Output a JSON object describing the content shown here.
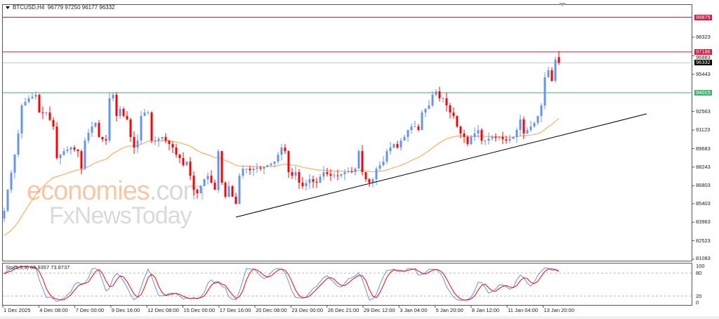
{
  "header": {
    "symbol": "BTCUSD,H4",
    "open": "96779",
    "high": "97250",
    "low": "96177",
    "close": "96332"
  },
  "stochastic": {
    "label": "Sto(5,3,3) 65.9357 73.8737",
    "levels": [
      "100",
      "80",
      "20",
      "0"
    ]
  },
  "watermark": {
    "line1": "economies",
    "line1_suffix": ".com",
    "line2": "FxNewsToday"
  },
  "price_axis": [
    "98323",
    "96883",
    "95443",
    "92563",
    "91123",
    "89683",
    "88243",
    "86803",
    "85403",
    "83963",
    "82523",
    "81083"
  ],
  "level_lines": [
    {
      "price": "99875",
      "color": "#e0143c"
    },
    {
      "price": "97186",
      "color": "#e0143c"
    },
    {
      "price": "96332",
      "color": "#000000"
    },
    {
      "price": "94015",
      "color": "#3cb371"
    }
  ],
  "time_axis": [
    "1 Dec 2025",
    "4 Dec 08:00",
    "7 Dec 00:00",
    "9 Dec 16:00",
    "12 Dec 08:00",
    "15 Dec 00:00",
    "17 Dec 16:00",
    "20 Dec 08:00",
    "23 Dec 00:00",
    "26 Dec 21:00",
    "29 Dec 12:00",
    "3 Jan 04:00",
    "5 Jan 20:00",
    "8 Jan 12:00",
    "11 Jan 04:00",
    "13 Jan 20:00"
  ],
  "colors": {
    "bull": "#6495ed",
    "bear": "#ff0000",
    "ma": "#ffa040",
    "trendline": "#000000",
    "stoch_main": "#6495ed",
    "stoch_signal": "#ff0000"
  },
  "chart_data": {
    "type": "candlestick",
    "timeframe": "H4",
    "closes": [
      84850,
      86480,
      87800,
      89210,
      90850,
      93030,
      93300,
      93580,
      93700,
      93850,
      92480,
      92450,
      92480,
      91900,
      91390,
      88940,
      89200,
      89480,
      89600,
      89760,
      89600,
      89480,
      88120,
      90300,
      90900,
      91390,
      91670,
      90580,
      90400,
      90300,
      93580,
      93850,
      92210,
      92760,
      92210,
      91940,
      90580,
      89760,
      90300,
      92210,
      92480,
      92480,
      90300,
      90300,
      90450,
      90580,
      90300,
      90030,
      89760,
      89210,
      88940,
      88390,
      88670,
      87570,
      86480,
      86210,
      86760,
      87300,
      87570,
      87030,
      86480,
      89480,
      87030,
      85940,
      86760,
      85940,
      85390,
      87570,
      88120,
      88120,
      88000,
      88120,
      88200,
      88120,
      88250,
      88390,
      88500,
      88670,
      89200,
      89760,
      89480,
      87850,
      87570,
      87850,
      87030,
      86760,
      87000,
      87300,
      87100,
      87030,
      87500,
      87850,
      87700,
      87570,
      87600,
      87570,
      87700,
      87850,
      87900,
      87850,
      88120,
      89480,
      87850,
      87300,
      87030,
      87300,
      88120,
      88390,
      88670,
      89480,
      89760,
      90030,
      89760,
      90300,
      90580,
      91120,
      91390,
      91390,
      91120,
      92480,
      92760,
      93030,
      93850,
      94120,
      93580,
      93580,
      93030,
      92480,
      92210,
      91390,
      90850,
      90580,
      90030,
      90580,
      90850,
      91120,
      90300,
      90300,
      90450,
      90580,
      90500,
      90580,
      90400,
      90300,
      90450,
      90580,
      91120,
      91940,
      90850,
      91120,
      91390,
      91670,
      92210,
      93030,
      95210,
      95760,
      94940,
      96580,
      96332
    ],
    "trendline": {
      "from": {
        "index": 66,
        "price": 84356
      },
      "to": {
        "index": 183,
        "price": 92375
      }
    },
    "ylim": [
      81083,
      100500
    ]
  }
}
